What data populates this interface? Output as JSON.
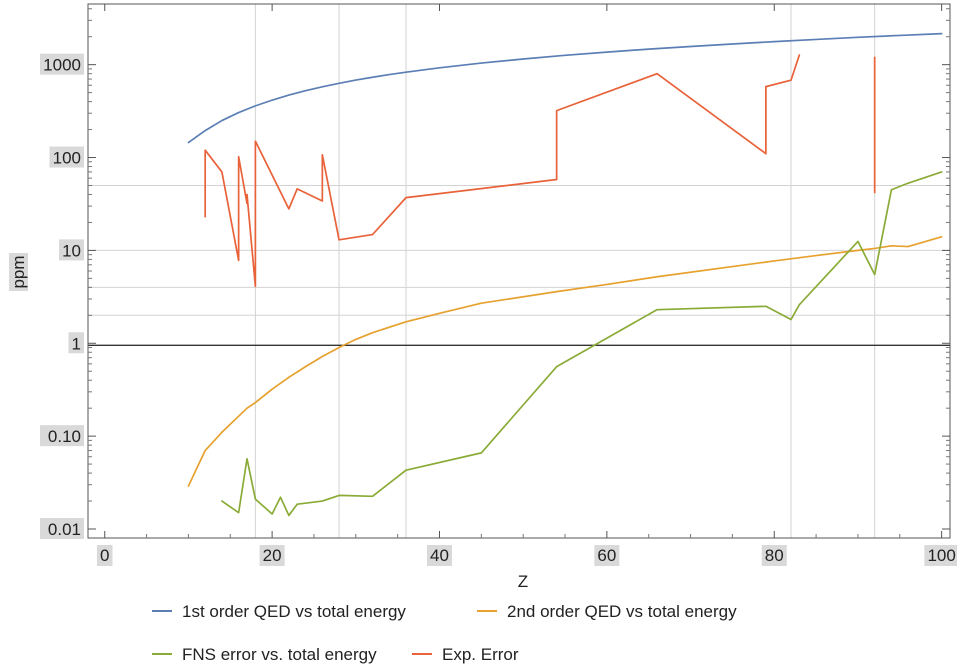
{
  "chart_data": {
    "type": "line",
    "title": "",
    "xlabel": "Z",
    "ylabel": "ppm",
    "xlim": [
      -2,
      101
    ],
    "ylim": [
      0.008,
      4500
    ],
    "yscale": "log",
    "x_ticks": [
      0,
      20,
      40,
      60,
      80,
      100
    ],
    "x_tick_labels": [
      "0",
      "20",
      "40",
      "60",
      "80",
      "100"
    ],
    "y_ticks": [
      0.01,
      0.1,
      1,
      10,
      100,
      1000
    ],
    "y_tick_labels": [
      "0.01",
      "0.10",
      "1",
      "10",
      "100",
      "1000"
    ],
    "grid_x": [
      18,
      28,
      36,
      82,
      92
    ],
    "grid_y": [
      2,
      4,
      10,
      50
    ],
    "reference_line_y": 0.95,
    "legend_position": "bottom",
    "series": [
      {
        "name": "1st order QED vs total energy",
        "color": "#5b7fb5",
        "x": [
          10,
          12,
          14,
          16,
          18,
          20,
          22,
          24,
          26,
          28,
          30,
          32,
          34,
          36,
          40,
          45,
          50,
          55,
          60,
          65,
          70,
          75,
          80,
          85,
          90,
          95,
          100
        ],
        "y": [
          145,
          195,
          250,
          305,
          360,
          415,
          470,
          525,
          578,
          630,
          682,
          732,
          782,
          830,
          925,
          1040,
          1150,
          1260,
          1365,
          1470,
          1570,
          1670,
          1770,
          1870,
          1970,
          2065,
          2160
        ]
      },
      {
        "name": "2nd order QED vs total energy",
        "color": "#e6a12e",
        "x": [
          10,
          12,
          14,
          17,
          18,
          20,
          22,
          24,
          26,
          28,
          30,
          32,
          36,
          40,
          45,
          54,
          60,
          66,
          75,
          80,
          85,
          90,
          92,
          94,
          96,
          100
        ],
        "y": [
          0.029,
          0.07,
          0.11,
          0.2,
          0.23,
          0.32,
          0.43,
          0.56,
          0.72,
          0.9,
          1.1,
          1.3,
          1.7,
          2.1,
          2.7,
          3.6,
          4.3,
          5.2,
          6.7,
          7.7,
          8.8,
          10,
          10.5,
          11.2,
          11,
          14
        ]
      },
      {
        "name": "FNS error vs. total energy",
        "color": "#8bab37",
        "x": [
          14,
          16,
          17,
          18,
          20,
          21,
          22,
          23,
          26,
          28,
          32,
          36,
          45,
          54,
          66,
          79,
          82,
          83,
          90,
          92,
          94,
          96,
          100
        ],
        "y": [
          0.02,
          0.015,
          0.057,
          0.021,
          0.0145,
          0.022,
          0.014,
          0.0185,
          0.02,
          0.023,
          0.0225,
          0.043,
          0.066,
          0.56,
          2.3,
          2.5,
          1.8,
          2.6,
          12.5,
          5.5,
          45,
          53,
          70
        ]
      },
      {
        "name": "Exp. Error",
        "color": "#e8623a",
        "x": [
          12,
          12,
          14,
          16,
          16,
          17,
          17,
          18,
          18,
          22,
          23,
          26,
          26,
          28,
          32,
          36,
          54,
          54,
          66,
          79,
          79,
          82,
          83,
          92,
          92
        ],
        "y": [
          23,
          120,
          70,
          7.8,
          102,
          32,
          40,
          4.1,
          150,
          28,
          46,
          34,
          107,
          13,
          14.8,
          37,
          58,
          320,
          800,
          110,
          580,
          680,
          1270,
          42,
          1200
        ],
        "segments": [
          [
            0,
            22
          ],
          [
            23,
            24
          ]
        ]
      }
    ]
  }
}
